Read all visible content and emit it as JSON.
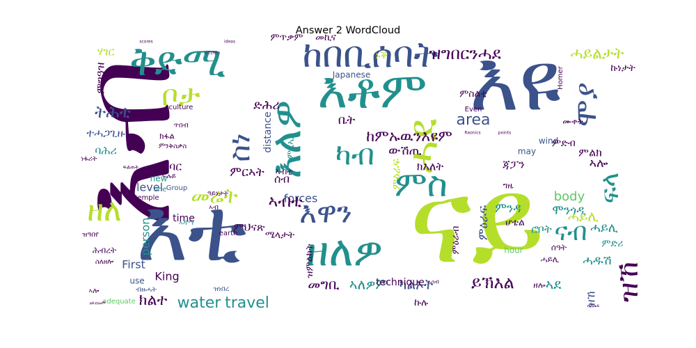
{
  "title": "Answer 2 WordCloud",
  "palette": {
    "dark_purple": "#440154",
    "blue": "#3b528b",
    "teal": "#21908d",
    "green": "#5dc863",
    "yellow_green": "#b5de2b"
  },
  "words": [
    {
      "text": "እብ",
      "color": "#440154"
    },
    {
      "text": "ናይ",
      "color": "#b5de2b"
    },
    {
      "text": "እቲ",
      "color": "#3b528b"
    },
    {
      "text": "እዩ",
      "color": "#3b528b"
    },
    {
      "text": "እቶም",
      "color": "#21908d"
    },
    {
      "text": "ቅድሚ",
      "color": "#21908d"
    },
    {
      "text": "ከበቢሰባት",
      "color": "#3b528b"
    },
    {
      "text": "ዘለዎ",
      "color": "#21908d"
    },
    {
      "text": "ሓደ",
      "color": "#b5de2b"
    },
    {
      "text": "ምስ",
      "color": "#21908d"
    },
    {
      "text": "እለዎ",
      "color": "#21908d"
    },
    {
      "text": "ስነ",
      "color": "#3b528b"
    },
    {
      "text": "ቦታ",
      "color": "#b5de2b"
    },
    {
      "text": "ካብ",
      "color": "#21908d"
    },
    {
      "text": "እዋን",
      "color": "#3b528b"
    },
    {
      "text": "ሞያ",
      "color": "#3b528b"
    },
    {
      "text": "ዝኸ",
      "color": "#440154"
    },
    {
      "text": "መሬት",
      "color": "#b5de2b"
    },
    {
      "text": "ፍላ",
      "color": "#21908d"
    },
    {
      "text": "ዘለ",
      "color": "#b5de2b"
    },
    {
      "text": "ናብ",
      "color": "#21908d"
    },
    {
      "text": "ዝግበርንሓደ",
      "color": "#440154"
    },
    {
      "text": "ሓይልታት",
      "color": "#b5de2b"
    },
    {
      "text": "ከምኡዉንእዩም",
      "color": "#440154"
    },
    {
      "text": "area",
      "color": "#3b528b"
    },
    {
      "text": "water",
      "color": "#21908d"
    },
    {
      "text": "travel",
      "color": "#21908d"
    },
    {
      "text": "ትሕቲ",
      "color": "#3b528b"
    },
    {
      "text": "ምጥቃም",
      "color": "#440154"
    },
    {
      "text": "መኪና",
      "color": "#440154"
    },
    {
      "text": "ኩነታት",
      "color": "#440154"
    },
    {
      "text": "ምንዳ",
      "color": "#21908d"
    },
    {
      "text": "distance",
      "color": "#3b528b"
    },
    {
      "text": "forces",
      "color": "#3b528b"
    },
    {
      "text": "person",
      "color": "#21908d"
    },
    {
      "text": "ምዕራፍ",
      "color": "#3b528b"
    },
    {
      "text": "ሮቦት",
      "color": "#21908d"
    },
    {
      "text": "ሓዱሽ",
      "color": "#21908d"
    },
    {
      "text": "ሓይሊ",
      "color": "#21908d"
    },
    {
      "text": "ሞንጎዲ",
      "color": "#21908d"
    },
    {
      "text": "ምልክ",
      "color": "#440154"
    },
    {
      "text": "ዝምልከት",
      "color": "#440154"
    },
    {
      "text": "ኣብቲ",
      "color": "#440154"
    },
    {
      "text": "ኣሎ",
      "color": "#440154"
    },
    {
      "text": "ቤት",
      "color": "#440154"
    },
    {
      "text": "ውሽጢ",
      "color": "#440154"
    },
    {
      "text": "ድሕሪ",
      "color": "#440154"
    },
    {
      "text": "ክእለት",
      "color": "#440154"
    },
    {
      "text": "ምርኣት",
      "color": "#440154"
    },
    {
      "text": "ሰብ",
      "color": "#440154"
    },
    {
      "text": "ምህናጽ",
      "color": "#440154"
    },
    {
      "text": "ክልተ",
      "color": "#440154"
    },
    {
      "text": "መግቢ",
      "color": "#440154"
    },
    {
      "text": "ኣለዎም",
      "color": "#21908d"
    },
    {
      "text": "ካልኦት",
      "color": "#3b528b"
    },
    {
      "text": "ይኽእል",
      "color": "#440154"
    },
    {
      "text": "ኣደ",
      "color": "#21908d"
    },
    {
      "text": "ምዕራብ",
      "color": "#440154"
    },
    {
      "text": "ኩሉ",
      "color": "#440154"
    },
    {
      "text": "ኑቕ",
      "color": "#b5de2b"
    },
    {
      "text": "ጃፓን",
      "color": "#440154"
    },
    {
      "text": "ሆቴል",
      "color": "#440154"
    },
    {
      "text": "ምድሪ",
      "color": "#21908d"
    },
    {
      "text": "ዝኸ",
      "color": "#3b528b"
    },
    {
      "text": "ዘሎ",
      "color": "#440154"
    },
    {
      "text": "ግዜ",
      "color": "#440154"
    },
    {
      "text": "ሰዓት",
      "color": "#440154"
    },
    {
      "text": "ሓይሊ",
      "color": "#b5de2b"
    },
    {
      "text": "body",
      "color": "#5dc863"
    },
    {
      "text": "hour",
      "color": "#5dc863"
    },
    {
      "text": "may",
      "color": "#3b528b"
    },
    {
      "text": "wind",
      "color": "#3b528b"
    },
    {
      "text": "ምድብ",
      "color": "#440154"
    },
    {
      "text": "ሙቀት",
      "color": "#440154"
    },
    {
      "text": "ፍሉይ",
      "color": "#440154"
    },
    {
      "text": "ምርኣይ",
      "color": "#21908d"
    },
    {
      "text": "ምዕራፍ",
      "color": "#b5de2b"
    },
    {
      "text": "ምስልቲ",
      "color": "#440154"
    },
    {
      "text": "ሃገር",
      "color": "#b5de2b"
    },
    {
      "text": "ምግዓዝ",
      "color": "#440154"
    },
    {
      "text": "ተሓጋጊዙ",
      "color": "#3b528b"
    },
    {
      "text": "ባሕሪ",
      "color": "#21908d"
    },
    {
      "text": "ነፋሪት",
      "color": "#440154"
    },
    {
      "text": "ምግባር",
      "color": "#440154"
    },
    {
      "text": "ሓይሊ",
      "color": "#440154"
    },
    {
      "text": "ክፋል",
      "color": "#440154"
    },
    {
      "text": "ሕብረት",
      "color": "#440154"
    },
    {
      "text": "ዝዓበየ",
      "color": "#440154"
    },
    {
      "text": "ስለዘሎ",
      "color": "#440154"
    },
    {
      "text": "ኣዳማ",
      "color": "#21908d"
    },
    {
      "text": "ኣሎ",
      "color": "#440154"
    },
    {
      "text": "ምንቅስቃስ",
      "color": "#440154"
    },
    {
      "text": "ኣብ",
      "color": "#440154"
    },
    {
      "text": "ብዙሓት",
      "color": "#3b528b"
    },
    {
      "text": "ዓይነታት",
      "color": "#440154"
    },
    {
      "text": "ሜላታት",
      "color": "#440154"
    },
    {
      "text": "ኣብቲ",
      "color": "#440154"
    },
    {
      "text": "culture",
      "color": "#440154"
    },
    {
      "text": "temple",
      "color": "#440154"
    },
    {
      "text": "new",
      "color": "#21908d"
    },
    {
      "text": "one",
      "color": "#21908d"
    },
    {
      "text": "level",
      "color": "#3b528b"
    },
    {
      "text": "First",
      "color": "#3b528b"
    },
    {
      "text": "King",
      "color": "#440154"
    },
    {
      "text": "time",
      "color": "#440154"
    },
    {
      "text": "Group",
      "color": "#3b528b"
    },
    {
      "text": "earth",
      "color": "#440154"
    },
    {
      "text": "use",
      "color": "#3b528b"
    },
    {
      "text": "adequate",
      "color": "#5dc863"
    },
    {
      "text": "technique",
      "color": "#440154"
    },
    {
      "text": "Japanese",
      "color": "#3b528b"
    },
    {
      "text": "Even",
      "color": "#440154"
    },
    {
      "text": "Homer",
      "color": "#440154"
    },
    {
      "text": "points",
      "color": "#440154"
    },
    {
      "text": "Raonics",
      "color": "#440154"
    },
    {
      "text": "citizens",
      "color": "#440154"
    },
    {
      "text": "scores",
      "color": "#440154"
    },
    {
      "text": "ideas",
      "color": "#440154"
    },
    {
      "text": "ዘይብሎም",
      "color": "#440154"
    },
    {
      "text": "ብኸመይ",
      "color": "#440154"
    },
    {
      "text": "ዝነበረ",
      "color": "#3b528b"
    },
    {
      "text": "ፍልጠት",
      "color": "#440154"
    },
    {
      "text": "ሓሳብ",
      "color": "#440154"
    },
    {
      "text": "ጥበብ",
      "color": "#440154"
    }
  ]
}
